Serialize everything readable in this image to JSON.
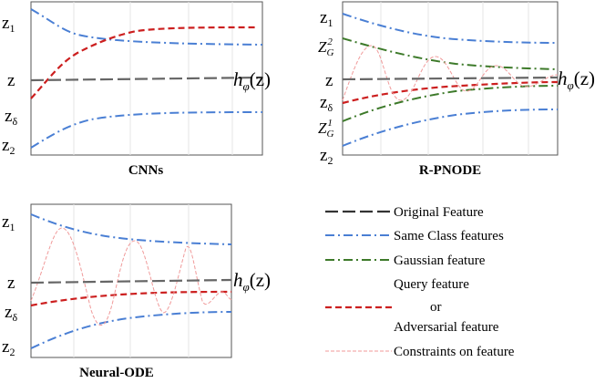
{
  "panels": {
    "cnns": {
      "caption": "CNNs",
      "labels": {
        "z1": "z",
        "z1_sub": "1",
        "z": "z",
        "zdelta": "z",
        "zdelta_sub": "δ",
        "z2": "z",
        "z2_sub": "2"
      },
      "h_label": {
        "h": "h",
        "sub": "φ",
        "arg": "(z)"
      }
    },
    "rpnode": {
      "caption": "R-PNODE",
      "labels": {
        "z1": "z",
        "z1_sub": "1",
        "zg2": "Z",
        "zg2_sub": "G",
        "zg2_sup": "2",
        "z": "z",
        "zdelta": "z",
        "zdelta_sub": "δ",
        "zg1": "Z",
        "zg1_sub": "G",
        "zg1_sup": "1",
        "z2": "z",
        "z2_sub": "2"
      },
      "h_label": {
        "h": "h",
        "sub": "φ",
        "arg": "(z)"
      }
    },
    "neural_ode": {
      "caption": "Neural-ODE",
      "labels": {
        "z1": "z",
        "z1_sub": "1",
        "z": "z",
        "zdelta": "z",
        "zdelta_sub": "δ",
        "z2": "z",
        "z2_sub": "2"
      },
      "h_label": {
        "h": "h",
        "sub": "φ",
        "arg": "(z)"
      }
    }
  },
  "legend": {
    "items": [
      {
        "label": "Original Feature",
        "color": "#333333",
        "style": "dashed-long"
      },
      {
        "label": "Same Class features",
        "color": "#4a7fd4",
        "style": "dash-dot"
      },
      {
        "label": "Gaussian feature",
        "color": "#3d7a2a",
        "style": "dash-dot"
      },
      {
        "label_line1": "Query feature",
        "label_line2": "or",
        "label_line3": "Adversarial feature",
        "color": "#cc1f1f",
        "style": "dashed"
      },
      {
        "label": "Constraints on feature",
        "color": "#f09a9a",
        "style": "dashed-thin"
      }
    ]
  },
  "colors": {
    "original": "#333333",
    "same_class": "#4a7fd4",
    "gaussian": "#3d7a2a",
    "query": "#cc1f1f",
    "constraint": "#f09a9a"
  }
}
